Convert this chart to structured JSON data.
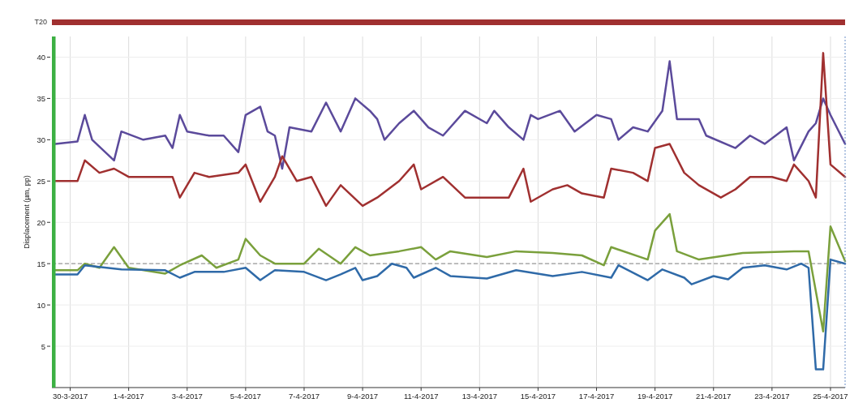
{
  "chart_data": {
    "type": "line",
    "ylabel": "Displacement (µm, pp)",
    "annotations": [
      "T20"
    ],
    "xlim": [
      "2017-03-29T09:00",
      "2017-04-25T12:00"
    ],
    "xticks": [
      {
        "value": "2017-03-30",
        "label": "30-3-2017"
      },
      {
        "value": "2017-04-01",
        "label": "1-4-2017"
      },
      {
        "value": "2017-04-03",
        "label": "3-4-2017"
      },
      {
        "value": "2017-04-05",
        "label": "5-4-2017"
      },
      {
        "value": "2017-04-07",
        "label": "7-4-2017"
      },
      {
        "value": "2017-04-09",
        "label": "9-4-2017"
      },
      {
        "value": "2017-04-11",
        "label": "11-4-2017"
      },
      {
        "value": "2017-04-13",
        "label": "13-4-2017"
      },
      {
        "value": "2017-04-15",
        "label": "15-4-2017"
      },
      {
        "value": "2017-04-17",
        "label": "17-4-2017"
      },
      {
        "value": "2017-04-19",
        "label": "19-4-2017"
      },
      {
        "value": "2017-04-21",
        "label": "21-4-2017"
      },
      {
        "value": "2017-04-23",
        "label": "23-4-2017"
      },
      {
        "value": "2017-04-25",
        "label": "25-4-2017"
      }
    ],
    "ylim": [
      0,
      42.5
    ],
    "yticks": [
      5,
      10,
      15,
      20,
      25,
      30,
      35,
      40
    ],
    "grid": true,
    "ref_lines": [
      {
        "axis": "y",
        "value": 15,
        "color": "#999999",
        "line_style": "dashed"
      }
    ],
    "bands": [
      {
        "axis": "x",
        "from": "2017-03-29T09:00",
        "to": "2017-03-29T12:00",
        "color": "#3cb043"
      }
    ],
    "series": [
      {
        "color": "#5b4a9b",
        "x": [
          "2017-03-29T12:00",
          "2017-03-30T06:00",
          "2017-03-30T12:00",
          "2017-03-30T18:00",
          "2017-03-31T12:00",
          "2017-03-31T18:00",
          "2017-04-01T12:00",
          "2017-04-02T06:00",
          "2017-04-02T12:00",
          "2017-04-02T18:00",
          "2017-04-03T00:00",
          "2017-04-03T18:00",
          "2017-04-04T06:00",
          "2017-04-04T18:00",
          "2017-04-05T00:00",
          "2017-04-05T12:00",
          "2017-04-05T18:00",
          "2017-04-06T00:00",
          "2017-04-06T06:00",
          "2017-04-06T12:00",
          "2017-04-07T06:00",
          "2017-04-07T18:00",
          "2017-04-08T06:00",
          "2017-04-08T18:00",
          "2017-04-09T06:00",
          "2017-04-09T12:00",
          "2017-04-09T18:00",
          "2017-04-10T06:00",
          "2017-04-10T18:00",
          "2017-04-11T06:00",
          "2017-04-11T18:00",
          "2017-04-12T12:00",
          "2017-04-13T06:00",
          "2017-04-13T12:00",
          "2017-04-14T00:00",
          "2017-04-14T12:00",
          "2017-04-14T18:00",
          "2017-04-15T00:00",
          "2017-04-15T18:00",
          "2017-04-16T06:00",
          "2017-04-17T00:00",
          "2017-04-17T12:00",
          "2017-04-17T18:00",
          "2017-04-18T06:00",
          "2017-04-18T18:00",
          "2017-04-19T06:00",
          "2017-04-19T12:00",
          "2017-04-19T18:00",
          "2017-04-20T12:00",
          "2017-04-20T18:00",
          "2017-04-21T18:00",
          "2017-04-22T06:00",
          "2017-04-22T18:00",
          "2017-04-23T12:00",
          "2017-04-23T18:00",
          "2017-04-24T06:00",
          "2017-04-24T12:00",
          "2017-04-24T18:00",
          "2017-04-25T00:00",
          "2017-04-25T12:00"
        ],
        "values": [
          29.5,
          29.8,
          33,
          30,
          27.5,
          31,
          30,
          30.5,
          29,
          33,
          31,
          30.5,
          30.5,
          28.5,
          33,
          34,
          31,
          30.5,
          26.5,
          31.5,
          31,
          34.5,
          31,
          35,
          33.5,
          32.5,
          30,
          32,
          33.5,
          31.5,
          30.5,
          33.5,
          32,
          33.5,
          31.5,
          30,
          33,
          32.5,
          33.5,
          31,
          33,
          32.5,
          30,
          31.5,
          31,
          33.5,
          39.5,
          32.5,
          32.5,
          30.5,
          29,
          30.5,
          29.5,
          31.5,
          27.5,
          31,
          32,
          35,
          33,
          29.5
        ]
      },
      {
        "color": "#a03030",
        "x": [
          "2017-03-29T12:00",
          "2017-03-30T06:00",
          "2017-03-30T12:00",
          "2017-03-31T00:00",
          "2017-03-31T12:00",
          "2017-04-01T00:00",
          "2017-04-02T00:00",
          "2017-04-02T12:00",
          "2017-04-02T18:00",
          "2017-04-03T06:00",
          "2017-04-03T18:00",
          "2017-04-04T18:00",
          "2017-04-05T00:00",
          "2017-04-05T12:00",
          "2017-04-06T00:00",
          "2017-04-06T06:00",
          "2017-04-06T18:00",
          "2017-04-07T06:00",
          "2017-04-07T18:00",
          "2017-04-08T06:00",
          "2017-04-09T00:00",
          "2017-04-09T12:00",
          "2017-04-10T06:00",
          "2017-04-10T18:00",
          "2017-04-11T00:00",
          "2017-04-11T18:00",
          "2017-04-12T12:00",
          "2017-04-13T06:00",
          "2017-04-14T00:00",
          "2017-04-14T12:00",
          "2017-04-14T18:00",
          "2017-04-15T12:00",
          "2017-04-16T00:00",
          "2017-04-16T12:00",
          "2017-04-17T06:00",
          "2017-04-17T12:00",
          "2017-04-18T06:00",
          "2017-04-18T18:00",
          "2017-04-19T00:00",
          "2017-04-19T12:00",
          "2017-04-20T00:00",
          "2017-04-20T12:00",
          "2017-04-21T06:00",
          "2017-04-21T18:00",
          "2017-04-22T06:00",
          "2017-04-23T00:00",
          "2017-04-23T12:00",
          "2017-04-23T18:00",
          "2017-04-24T06:00",
          "2017-04-24T12:00",
          "2017-04-24T18:00",
          "2017-04-25T00:00",
          "2017-04-25T12:00"
        ],
        "values": [
          25,
          25,
          27.5,
          26,
          26.5,
          25.5,
          25.5,
          25.5,
          23,
          26,
          25.5,
          26,
          27,
          22.5,
          25.5,
          28,
          25,
          25.5,
          22,
          24.5,
          22,
          23,
          25,
          27,
          24,
          25.5,
          23,
          23,
          23,
          26.5,
          22.5,
          24,
          24.5,
          23.5,
          23,
          26.5,
          26,
          25,
          29,
          29.5,
          26,
          24.5,
          23,
          24,
          25.5,
          25.5,
          25,
          27,
          25,
          23,
          40.5,
          27,
          25.5
        ]
      },
      {
        "color": "#7aa03c",
        "x": [
          "2017-03-29T12:00",
          "2017-03-30T06:00",
          "2017-03-30T12:00",
          "2017-03-31T00:00",
          "2017-03-31T12:00",
          "2017-04-01T00:00",
          "2017-04-02T06:00",
          "2017-04-02T18:00",
          "2017-04-03T12:00",
          "2017-04-04T00:00",
          "2017-04-04T18:00",
          "2017-04-05T00:00",
          "2017-04-05T12:00",
          "2017-04-06T00:00",
          "2017-04-07T00:00",
          "2017-04-07T12:00",
          "2017-04-08T06:00",
          "2017-04-08T18:00",
          "2017-04-09T06:00",
          "2017-04-10T06:00",
          "2017-04-11T00:00",
          "2017-04-11T12:00",
          "2017-04-12T00:00",
          "2017-04-13T06:00",
          "2017-04-14T06:00",
          "2017-04-15T12:00",
          "2017-04-16T12:00",
          "2017-04-17T06:00",
          "2017-04-17T12:00",
          "2017-04-18T18:00",
          "2017-04-19T00:00",
          "2017-04-19T12:00",
          "2017-04-19T18:00",
          "2017-04-20T12:00",
          "2017-04-22T00:00",
          "2017-04-23T18:00",
          "2017-04-24T06:00",
          "2017-04-24T18:00",
          "2017-04-25T00:00",
          "2017-04-25T12:00"
        ],
        "values": [
          14.2,
          14.2,
          15,
          14.5,
          17,
          14.5,
          13.8,
          14.8,
          16,
          14.5,
          15.5,
          18,
          16,
          15,
          15,
          16.8,
          15,
          17,
          16,
          16.5,
          17,
          15.5,
          16.5,
          15.8,
          16.5,
          16.3,
          16,
          14.8,
          17,
          15.5,
          19,
          21,
          16.5,
          15.5,
          16.3,
          16.5,
          16.5,
          6.8,
          19.5,
          15.3
        ]
      },
      {
        "color": "#2f6aa8",
        "x": [
          "2017-03-29T12:00",
          "2017-03-30T06:00",
          "2017-03-30T12:00",
          "2017-03-31T18:00",
          "2017-04-02T06:00",
          "2017-04-02T18:00",
          "2017-04-03T06:00",
          "2017-04-04T06:00",
          "2017-04-05T00:00",
          "2017-04-05T12:00",
          "2017-04-06T00:00",
          "2017-04-07T00:00",
          "2017-04-07T18:00",
          "2017-04-08T06:00",
          "2017-04-08T18:00",
          "2017-04-09T00:00",
          "2017-04-09T12:00",
          "2017-04-10T00:00",
          "2017-04-10T12:00",
          "2017-04-10T18:00",
          "2017-04-11T12:00",
          "2017-04-12T00:00",
          "2017-04-13T06:00",
          "2017-04-14T06:00",
          "2017-04-15T12:00",
          "2017-04-16T12:00",
          "2017-04-17T12:00",
          "2017-04-17T18:00",
          "2017-04-18T18:00",
          "2017-04-19T06:00",
          "2017-04-20T00:00",
          "2017-04-20T06:00",
          "2017-04-21T00:00",
          "2017-04-21T12:00",
          "2017-04-22T00:00",
          "2017-04-22T18:00",
          "2017-04-23T12:00",
          "2017-04-24T00:00",
          "2017-04-24T06:00",
          "2017-04-24T12:00",
          "2017-04-24T18:00",
          "2017-04-25T00:00",
          "2017-04-25T12:00"
        ],
        "values": [
          13.7,
          13.7,
          14.8,
          14.3,
          14.2,
          13.3,
          14,
          14,
          14.5,
          13,
          14.2,
          14,
          13,
          13.7,
          14.5,
          13,
          13.5,
          15,
          14.5,
          13.3,
          14.5,
          13.5,
          13.2,
          14.2,
          13.5,
          14,
          13.3,
          14.8,
          13,
          14.3,
          13.3,
          12.5,
          13.5,
          13.1,
          14.5,
          14.8,
          14.3,
          15,
          14.5,
          2.2,
          2.2,
          15.5,
          15
        ]
      }
    ]
  }
}
